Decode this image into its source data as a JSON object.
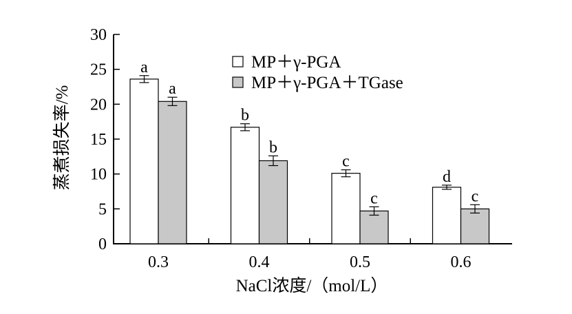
{
  "chart_data": {
    "type": "bar",
    "xlabel": "NaCl浓度/（mol/L）",
    "ylabel": "蒸煮损失率/%",
    "ylim": [
      0,
      30
    ],
    "yticks": [
      0,
      5,
      10,
      15,
      20,
      25,
      30
    ],
    "categories": [
      "0.3",
      "0.4",
      "0.5",
      "0.6"
    ],
    "grid": false,
    "legend_position": "top-right",
    "series": [
      {
        "name": "MP＋γ-PGA",
        "color": "#ffffff",
        "values": [
          23.6,
          16.7,
          10.1,
          8.1
        ],
        "errors": [
          0.5,
          0.5,
          0.5,
          0.3
        ],
        "labels": [
          "a",
          "b",
          "c",
          "d"
        ]
      },
      {
        "name": "MP＋γ-PGA＋TGase",
        "color": "#c8c8c8",
        "values": [
          20.4,
          11.9,
          4.7,
          5.0
        ],
        "errors": [
          0.6,
          0.7,
          0.6,
          0.6
        ],
        "labels": [
          "a",
          "b",
          "c",
          "c"
        ]
      }
    ]
  }
}
